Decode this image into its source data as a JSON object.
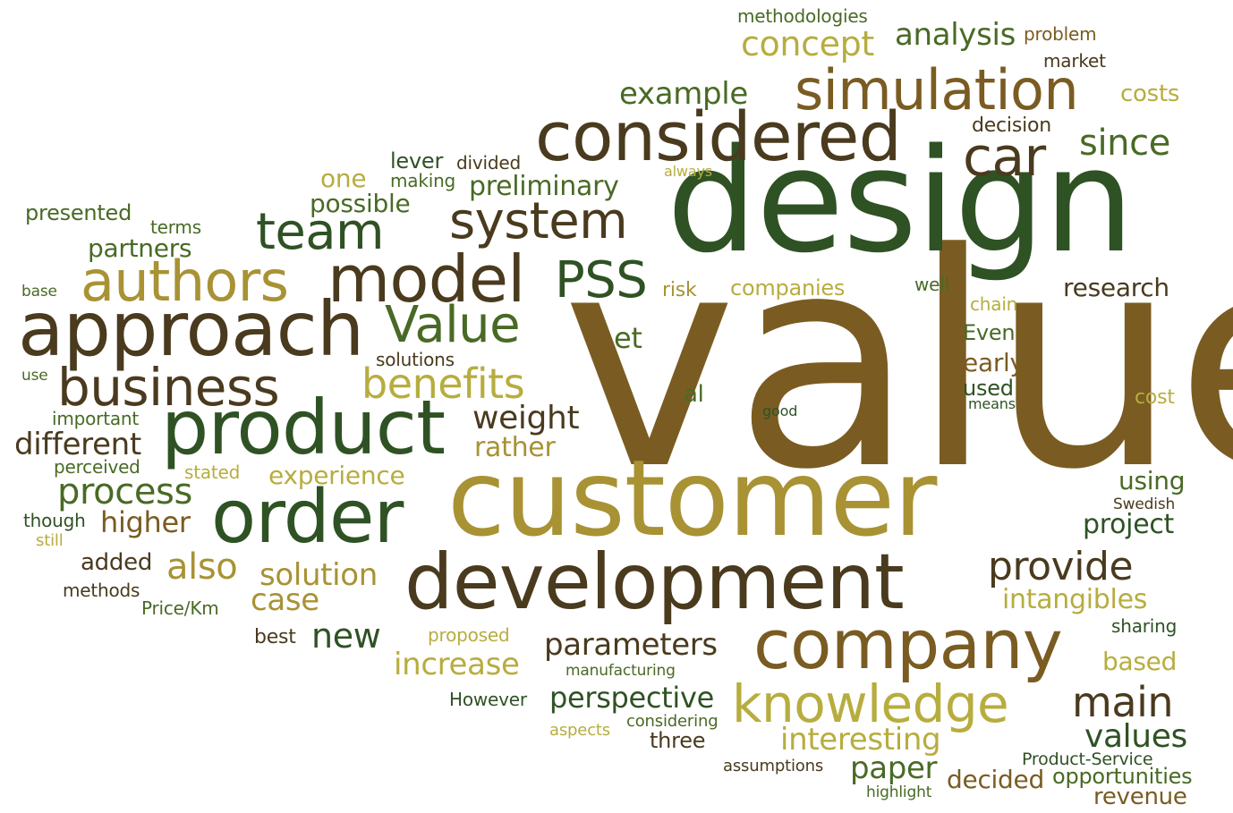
{
  "palette": {
    "dark_brown": "#4a3a1e",
    "brown": "#7a5c22",
    "dark_green": "#2f5224",
    "olive_green": "#496a25",
    "mustard": "#a89234",
    "yellow_green": "#b7ad3f"
  },
  "words": [
    {
      "text": "value",
      "color": "#7a5c22"
    },
    {
      "text": "design",
      "color": "#2f5224"
    },
    {
      "text": "customer",
      "color": "#a89234"
    },
    {
      "text": "considered",
      "color": "#4a3a1e"
    },
    {
      "text": "development",
      "color": "#4a3a1e"
    },
    {
      "text": "product",
      "color": "#2f5224"
    },
    {
      "text": "approach",
      "color": "#4a3a1e"
    },
    {
      "text": "company",
      "color": "#7a5c22"
    },
    {
      "text": "order",
      "color": "#2f5224"
    },
    {
      "text": "knowledge",
      "color": "#b7ad3f"
    },
    {
      "text": "simulation",
      "color": "#7a5c22"
    },
    {
      "text": "model",
      "color": "#4a3a1e"
    },
    {
      "text": "system",
      "color": "#4a3a1e"
    },
    {
      "text": "business",
      "color": "#4a3a1e"
    },
    {
      "text": "authors",
      "color": "#a89234"
    },
    {
      "text": "team",
      "color": "#2f5224"
    },
    {
      "text": "Value",
      "color": "#496a25"
    },
    {
      "text": "PSS",
      "color": "#2f5224"
    },
    {
      "text": "car",
      "color": "#4a3a1e"
    },
    {
      "text": "benefits",
      "color": "#b7ad3f"
    },
    {
      "text": "main",
      "color": "#4a3a1e"
    },
    {
      "text": "provide",
      "color": "#4a3a1e"
    },
    {
      "text": "process",
      "color": "#496a25"
    },
    {
      "text": "also",
      "color": "#a89234"
    },
    {
      "text": "since",
      "color": "#496a25"
    },
    {
      "text": "concept",
      "color": "#b7ad3f"
    },
    {
      "text": "weight",
      "color": "#4a3a1e"
    },
    {
      "text": "different",
      "color": "#4a3a1e"
    },
    {
      "text": "parameters",
      "color": "#4a3a1e"
    },
    {
      "text": "example",
      "color": "#496a25"
    },
    {
      "text": "analysis",
      "color": "#496a25"
    },
    {
      "text": "increase",
      "color": "#b7ad3f"
    },
    {
      "text": "interesting",
      "color": "#b7ad3f"
    },
    {
      "text": "perspective",
      "color": "#2f5224"
    },
    {
      "text": "solution",
      "color": "#a89234"
    },
    {
      "text": "values",
      "color": "#2f5224"
    },
    {
      "text": "paper",
      "color": "#496a25"
    },
    {
      "text": "case",
      "color": "#a89234"
    },
    {
      "text": "new",
      "color": "#2f5224"
    },
    {
      "text": "higher",
      "color": "#7a5c22"
    },
    {
      "text": "preliminary",
      "color": "#496a25"
    },
    {
      "text": "rather",
      "color": "#a89234"
    },
    {
      "text": "project",
      "color": "#2f5224"
    },
    {
      "text": "intangibles",
      "color": "#b7ad3f"
    },
    {
      "text": "research",
      "color": "#4a3a1e"
    },
    {
      "text": "experience",
      "color": "#b7ad3f"
    },
    {
      "text": "possible",
      "color": "#496a25"
    },
    {
      "text": "partners",
      "color": "#496a25"
    },
    {
      "text": "et",
      "color": "#496a25"
    },
    {
      "text": "early",
      "color": "#7a5c22"
    },
    {
      "text": "using",
      "color": "#496a25"
    },
    {
      "text": "based",
      "color": "#b7ad3f"
    },
    {
      "text": "decided",
      "color": "#7a5c22"
    },
    {
      "text": "revenue",
      "color": "#7a5c22"
    },
    {
      "text": "opportunities",
      "color": "#496a25"
    },
    {
      "text": "one",
      "color": "#b7ad3f"
    },
    {
      "text": "presented",
      "color": "#496a25"
    },
    {
      "text": "added",
      "color": "#4a3a1e"
    },
    {
      "text": "companies",
      "color": "#b7ad3f"
    },
    {
      "text": "al",
      "color": "#496a25"
    },
    {
      "text": "costs",
      "color": "#b7ad3f"
    },
    {
      "text": "three",
      "color": "#4a3a1e"
    },
    {
      "text": "lever",
      "color": "#2f5224"
    },
    {
      "text": "used",
      "color": "#2f5224"
    },
    {
      "text": "Even",
      "color": "#496a25"
    },
    {
      "text": "methodologies",
      "color": "#496a25"
    },
    {
      "text": "decision",
      "color": "#4a3a1e"
    },
    {
      "text": "market",
      "color": "#4a3a1e"
    },
    {
      "text": "problem",
      "color": "#7a5c22"
    },
    {
      "text": "terms",
      "color": "#496a25"
    },
    {
      "text": "making",
      "color": "#496a25"
    },
    {
      "text": "divided",
      "color": "#4a3a1e"
    },
    {
      "text": "risk",
      "color": "#a89234"
    },
    {
      "text": "well",
      "color": "#496a25"
    },
    {
      "text": "chain",
      "color": "#b7ad3f"
    },
    {
      "text": "solutions",
      "color": "#4a3a1e"
    },
    {
      "text": "important",
      "color": "#496a25"
    },
    {
      "text": "perceived",
      "color": "#496a25"
    },
    {
      "text": "stated",
      "color": "#b7ad3f"
    },
    {
      "text": "though",
      "color": "#2f5224"
    },
    {
      "text": "still",
      "color": "#b7ad3f"
    },
    {
      "text": "methods",
      "color": "#4a3a1e"
    },
    {
      "text": "Price/Km",
      "color": "#496a25"
    },
    {
      "text": "best",
      "color": "#4a3a1e"
    },
    {
      "text": "proposed",
      "color": "#b7ad3f"
    },
    {
      "text": "manufacturing",
      "color": "#496a25"
    },
    {
      "text": "However",
      "color": "#2f5224"
    },
    {
      "text": "aspects",
      "color": "#b7ad3f"
    },
    {
      "text": "considering",
      "color": "#496a25"
    },
    {
      "text": "assumptions",
      "color": "#4a3a1e"
    },
    {
      "text": "highlight",
      "color": "#496a25"
    },
    {
      "text": "Product-Service",
      "color": "#2f5224"
    },
    {
      "text": "sharing",
      "color": "#2f5224"
    },
    {
      "text": "Swedish",
      "color": "#4a3a1e"
    },
    {
      "text": "cost",
      "color": "#b7ad3f"
    },
    {
      "text": "means",
      "color": "#2f5224"
    },
    {
      "text": "good",
      "color": "#2f5224"
    },
    {
      "text": "always",
      "color": "#b7ad3f"
    },
    {
      "text": "base",
      "color": "#496a25"
    },
    {
      "text": "use",
      "color": "#496a25"
    }
  ]
}
